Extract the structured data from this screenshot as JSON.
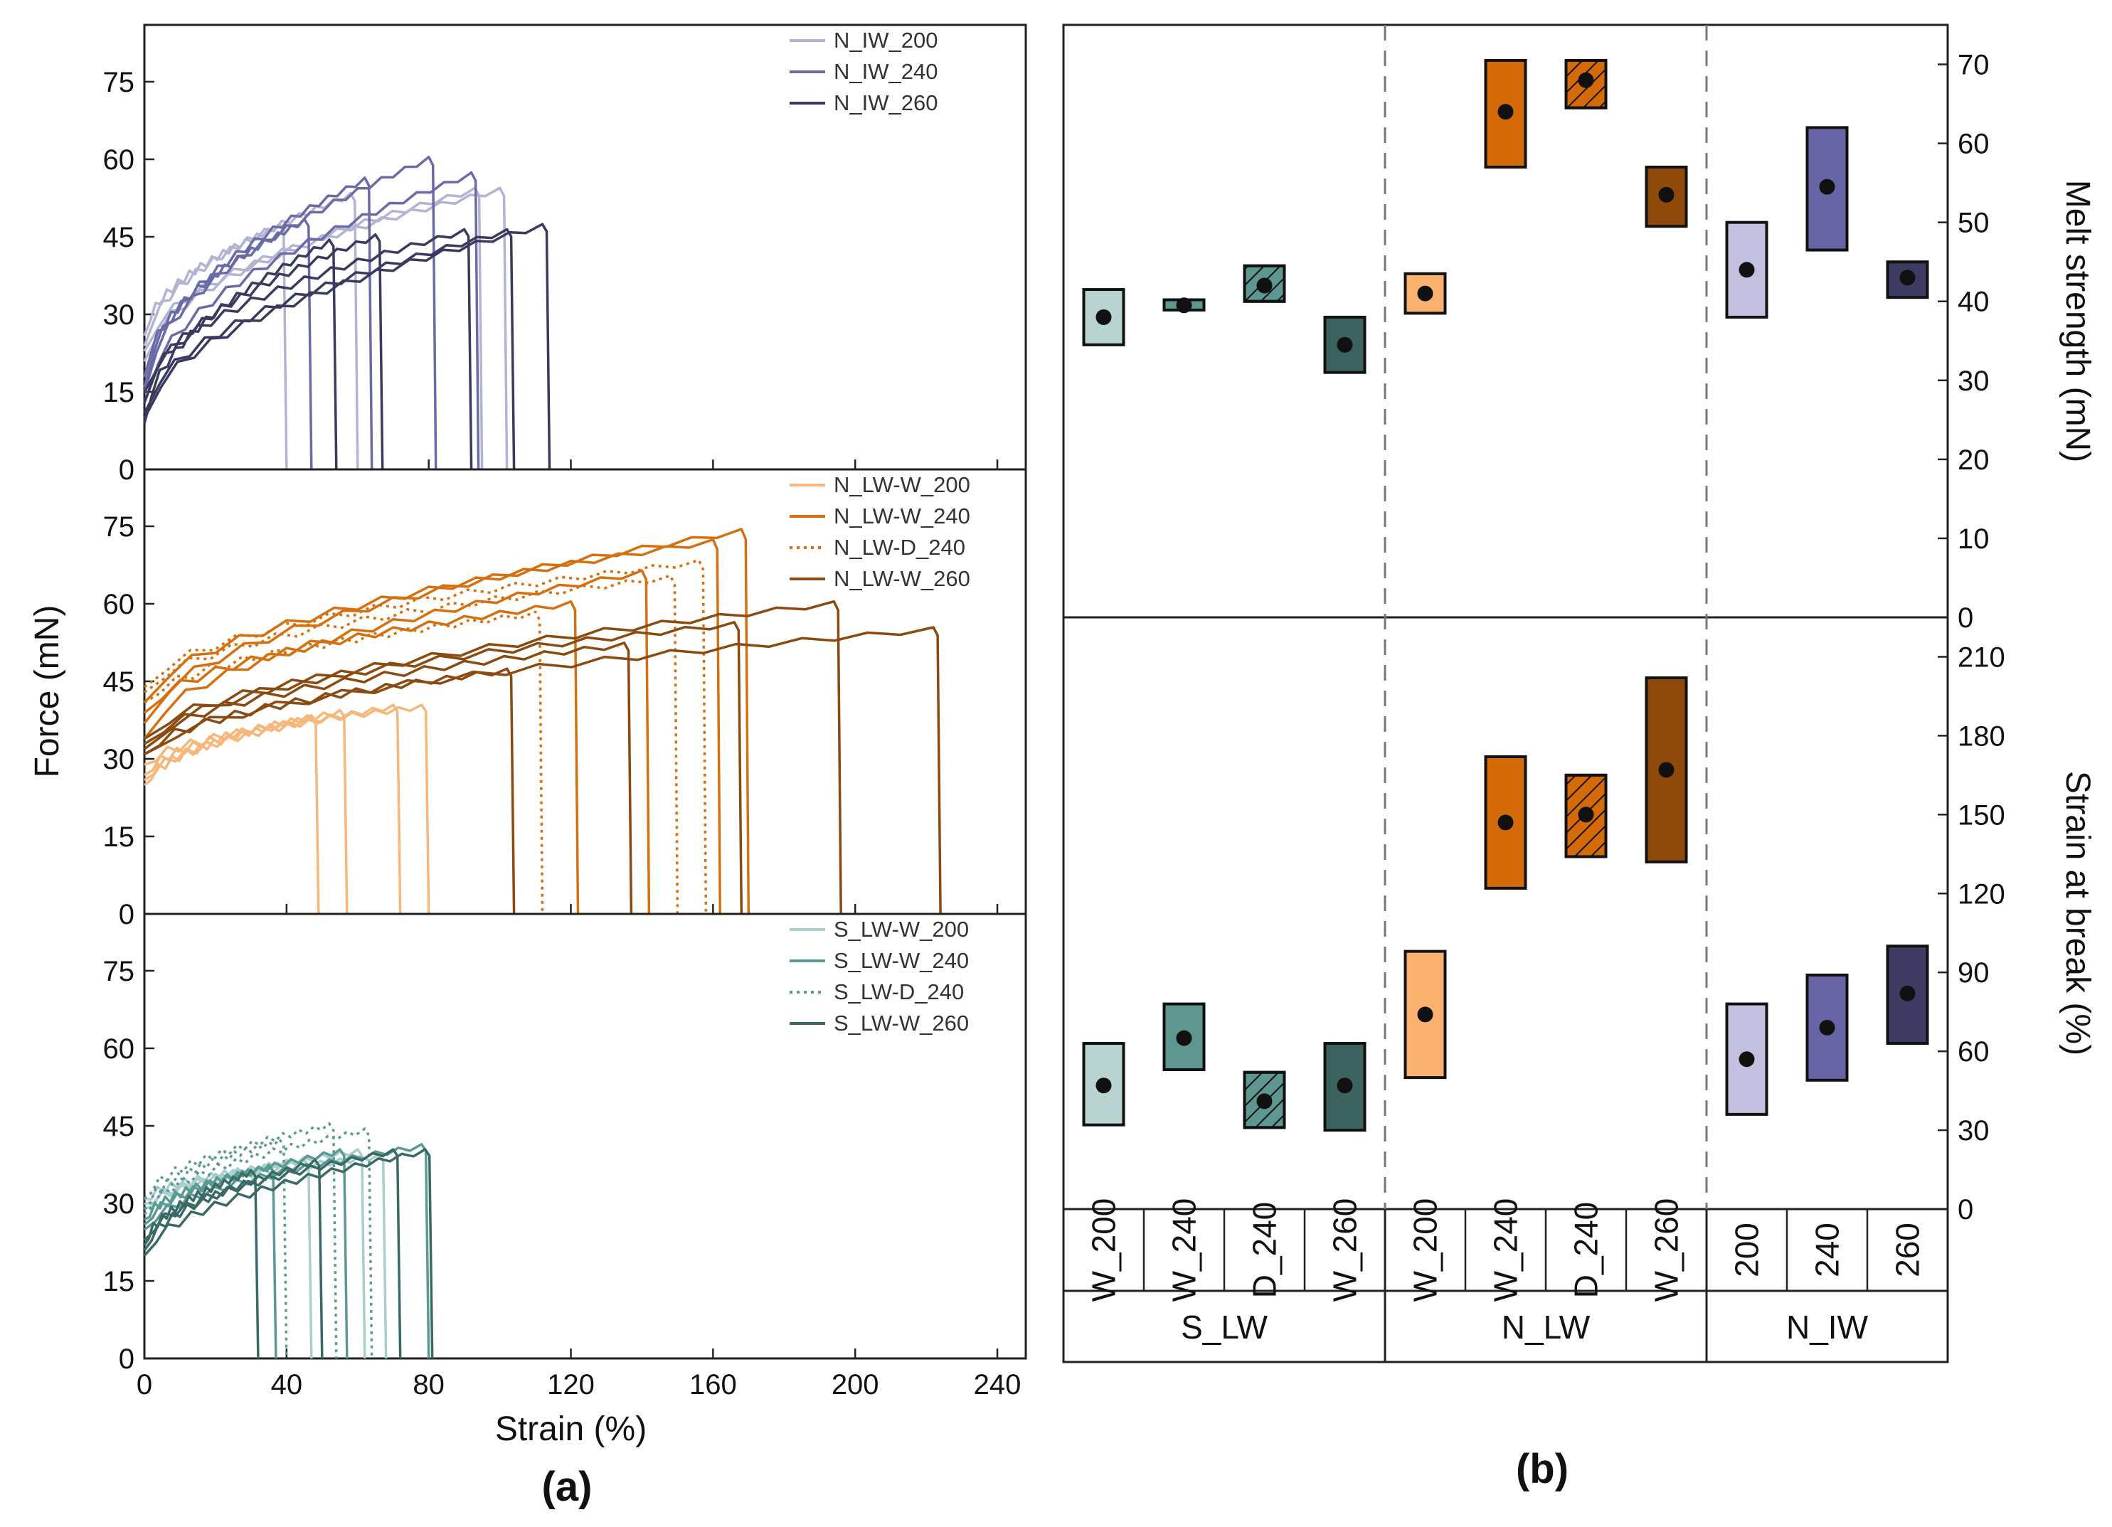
{
  "panel_labels": [
    "(a)",
    "(b)"
  ],
  "chart_data": [
    {
      "type": "line",
      "panel": "(a)",
      "xlabel": "Strain (%)",
      "ylabel": "Force (mN)",
      "xlim": [
        0,
        248
      ],
      "ylim": [
        0,
        86
      ],
      "xticks": [
        "0",
        "40",
        "80",
        "120",
        "160",
        "200",
        "240"
      ],
      "yticks": [
        "0",
        "15",
        "30",
        "45",
        "60",
        "75"
      ],
      "subplots": [
        {
          "legend_position": "top-right",
          "series": [
            {
              "name": "N_IW_200",
              "color": "#b3b3d3",
              "dashed": false,
              "curves": [
                {
                  "start": 25,
                  "peak": 47,
                  "break": 38
                },
                {
                  "start": 23,
                  "peak": 53,
                  "break": 58
                },
                {
                  "start": 20,
                  "peak": 54,
                  "break": 93
                },
                {
                  "start": 22,
                  "peak": 54,
                  "break": 100
                }
              ]
            },
            {
              "name": "N_IW_240",
              "color": "#6a6aa6",
              "dashed": false,
              "curves": [
                {
                  "start": 17,
                  "peak": 48,
                  "break": 45
                },
                {
                  "start": 15,
                  "peak": 56,
                  "break": 62
                },
                {
                  "start": 14,
                  "peak": 60,
                  "break": 80
                },
                {
                  "start": 12,
                  "peak": 57,
                  "break": 92
                }
              ]
            },
            {
              "name": "N_IW_260",
              "color": "#3a3a5e",
              "dashed": false,
              "curves": [
                {
                  "start": 8,
                  "peak": 44,
                  "break": 52
                },
                {
                  "start": 12,
                  "peak": 45,
                  "break": 65
                },
                {
                  "start": 14,
                  "peak": 46,
                  "break": 90
                },
                {
                  "start": 10,
                  "peak": 46,
                  "break": 102
                },
                {
                  "start": 9,
                  "peak": 47,
                  "break": 112
                }
              ]
            }
          ]
        },
        {
          "legend_position": "top-right",
          "series": [
            {
              "name": "N_LW-W_200",
              "color": "#f7b77a",
              "dashed": false,
              "curves": [
                {
                  "start": 24,
                  "peak": 38,
                  "break": 47
                },
                {
                  "start": 26,
                  "peak": 39,
                  "break": 55
                },
                {
                  "start": 25,
                  "peak": 40,
                  "break": 70
                },
                {
                  "start": 28,
                  "peak": 40,
                  "break": 78
                }
              ]
            },
            {
              "name": "N_LW-W_240",
              "color": "#d4700f",
              "dashed": false,
              "curves": [
                {
                  "start": 38,
                  "peak": 60,
                  "break": 120
                },
                {
                  "start": 33,
                  "peak": 66,
                  "break": 140
                },
                {
                  "start": 40,
                  "peak": 72,
                  "break": 160
                },
                {
                  "start": 36,
                  "peak": 74,
                  "break": 168
                }
              ]
            },
            {
              "name": "N_LW-D_240",
              "color": "#d4700f",
              "dashed": true,
              "curves": [
                {
                  "start": 40,
                  "peak": 58,
                  "break": 110
                },
                {
                  "start": 42,
                  "peak": 65,
                  "break": 148
                },
                {
                  "start": 43,
                  "peak": 68,
                  "break": 156
                }
              ]
            },
            {
              "name": "N_LW-W_260",
              "color": "#8a4a10",
              "dashed": false,
              "curves": [
                {
                  "start": 30,
                  "peak": 47,
                  "break": 102
                },
                {
                  "start": 32,
                  "peak": 52,
                  "break": 135
                },
                {
                  "start": 33,
                  "peak": 56,
                  "break": 166
                },
                {
                  "start": 31,
                  "peak": 60,
                  "break": 194
                },
                {
                  "start": 30,
                  "peak": 55,
                  "break": 222
                }
              ]
            }
          ]
        },
        {
          "legend_position": "top-right",
          "series": [
            {
              "name": "S_LW-W_200",
              "color": "#a8cfcc",
              "dashed": false,
              "curves": [
                {
                  "start": 30,
                  "peak": 38,
                  "break": 45
                },
                {
                  "start": 28,
                  "peak": 40,
                  "break": 60
                },
                {
                  "start": 29,
                  "peak": 39,
                  "break": 66
                }
              ]
            },
            {
              "name": "S_LW-W_240",
              "color": "#5a9a93",
              "dashed": false,
              "curves": [
                {
                  "start": 26,
                  "peak": 37,
                  "break": 35
                },
                {
                  "start": 25,
                  "peak": 40,
                  "break": 55
                },
                {
                  "start": 24,
                  "peak": 41,
                  "break": 78
                }
              ]
            },
            {
              "name": "S_LW-D_240",
              "color": "#5a9a93",
              "dashed": true,
              "curves": [
                {
                  "start": 28,
                  "peak": 42,
                  "break": 38
                },
                {
                  "start": 30,
                  "peak": 45,
                  "break": 52
                },
                {
                  "start": 27,
                  "peak": 44,
                  "break": 62
                }
              ]
            },
            {
              "name": "S_LW-W_260",
              "color": "#3a6a65",
              "dashed": false,
              "curves": [
                {
                  "start": 21,
                  "peak": 36,
                  "break": 30
                },
                {
                  "start": 20,
                  "peak": 38,
                  "break": 48
                },
                {
                  "start": 22,
                  "peak": 40,
                  "break": 70
                },
                {
                  "start": 19,
                  "peak": 40,
                  "break": 79
                }
              ]
            }
          ]
        }
      ]
    },
    {
      "type": "box",
      "panel": "(b)",
      "top_ylabel": "Melt strength (mN)",
      "top_ylim": [
        0,
        75
      ],
      "top_yticks": [
        "0",
        "10",
        "20",
        "30",
        "40",
        "50",
        "60",
        "70"
      ],
      "bottom_ylabel": "Strain at break (%)",
      "bottom_ylim": [
        0,
        225
      ],
      "bottom_yticks": [
        "0",
        "30",
        "60",
        "90",
        "120",
        "150",
        "180",
        "210"
      ],
      "groups": [
        {
          "name": "S_LW",
          "categories": [
            "W_200",
            "W_240",
            "D_240",
            "W_260"
          ]
        },
        {
          "name": "N_LW",
          "categories": [
            "W_200",
            "W_240",
            "D_240",
            "W_260"
          ]
        },
        {
          "name": "N_IW",
          "categories": [
            "200",
            "240",
            "260"
          ]
        }
      ],
      "boxes": [
        {
          "group": "S_LW",
          "label": "W_200",
          "color": "#b9d3d0",
          "hatched": false,
          "melt": [
            34.5,
            38,
            41.5
          ],
          "strain": [
            32,
            47,
            63
          ]
        },
        {
          "group": "S_LW",
          "label": "W_240",
          "color": "#5e9690",
          "hatched": false,
          "melt": [
            38.9,
            39.5,
            40.2
          ],
          "strain": [
            53,
            65,
            78
          ]
        },
        {
          "group": "S_LW",
          "label": "D_240",
          "color": "#5e9690",
          "hatched": true,
          "melt": [
            40,
            42,
            44.5
          ],
          "strain": [
            31,
            41,
            52
          ]
        },
        {
          "group": "S_LW",
          "label": "W_260",
          "color": "#3c625f",
          "hatched": false,
          "melt": [
            31,
            34.5,
            38
          ],
          "strain": [
            30,
            47,
            63
          ]
        },
        {
          "group": "N_LW",
          "label": "W_200",
          "color": "#fbb26e",
          "hatched": false,
          "melt": [
            38.5,
            41,
            43.5
          ],
          "strain": [
            50,
            74,
            98
          ]
        },
        {
          "group": "N_LW",
          "label": "W_240",
          "color": "#d56b08",
          "hatched": false,
          "melt": [
            57,
            64,
            70.5
          ],
          "strain": [
            122,
            147,
            172
          ]
        },
        {
          "group": "N_LW",
          "label": "D_240",
          "color": "#d56b08",
          "hatched": true,
          "melt": [
            64.5,
            68,
            70.5
          ],
          "strain": [
            134,
            150,
            165
          ]
        },
        {
          "group": "N_LW",
          "label": "W_260",
          "color": "#8f4a0b",
          "hatched": false,
          "melt": [
            49.5,
            53.5,
            57
          ],
          "strain": [
            132,
            167,
            202
          ]
        },
        {
          "group": "N_IW",
          "label": "200",
          "color": "#c3c1df",
          "hatched": false,
          "melt": [
            38,
            44,
            50
          ],
          "strain": [
            36,
            57,
            78
          ]
        },
        {
          "group": "N_IW",
          "label": "240",
          "color": "#6765a5",
          "hatched": false,
          "melt": [
            46.5,
            54.5,
            62
          ],
          "strain": [
            49,
            69,
            89
          ]
        },
        {
          "group": "N_IW",
          "label": "260",
          "color": "#3d3b62",
          "hatched": false,
          "melt": [
            40.5,
            43,
            45
          ],
          "strain": [
            63,
            82,
            100
          ]
        }
      ]
    }
  ]
}
